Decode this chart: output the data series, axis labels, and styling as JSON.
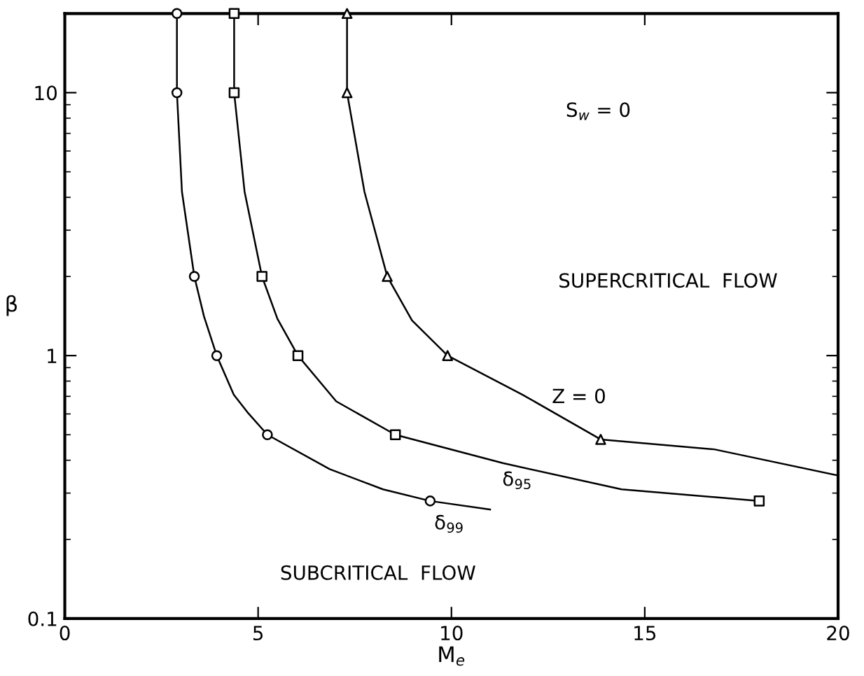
{
  "chart_data": {
    "type": "line",
    "xlabel": "M$_{e}$",
    "ylabel": "β",
    "log": "y",
    "grid": false,
    "line_style": "solid",
    "xlim": [
      0,
      20
    ],
    "ylim": [
      0.1,
      20
    ],
    "xticks": [
      0,
      5,
      10,
      15,
      20
    ],
    "yticks": [
      0.1,
      1,
      10
    ],
    "series": [
      {
        "color": "#000000",
        "marker": "none",
        "x": [
          2.9,
          2.9,
          3.03,
          3.35,
          3.6,
          3.93,
          4.37,
          4.72,
          5.24,
          6.85,
          8.23,
          9.45,
          11.0
        ],
        "values": [
          20,
          10,
          4.2,
          2,
          1.41,
          1,
          0.71,
          0.61,
          0.5,
          0.37,
          0.31,
          0.28,
          0.26
        ]
      },
      {
        "color": "#000000",
        "type": "scatter",
        "marker": "circle",
        "x": [
          2.9,
          2.9,
          3.35,
          3.93,
          5.24,
          9.45
        ],
        "values": [
          20,
          10,
          2,
          1,
          0.5,
          0.28
        ]
      },
      {
        "color": "#000000",
        "marker": "none",
        "x": [
          4.38,
          4.38,
          4.65,
          5.1,
          5.5,
          6.03,
          7.02,
          8.55,
          11.33,
          14.4,
          17.96
        ],
        "values": [
          20,
          10,
          4.2,
          2,
          1.38,
          1,
          0.67,
          0.5,
          0.39,
          0.31,
          0.28
        ]
      },
      {
        "color": "#000000",
        "type": "scatter",
        "marker": "square",
        "x": [
          4.38,
          4.38,
          5.1,
          6.03,
          8.55,
          17.96
        ],
        "values": [
          20,
          10,
          2,
          1,
          0.5,
          0.28
        ]
      },
      {
        "color": "#000000",
        "marker": "none",
        "x": [
          7.3,
          7.3,
          7.75,
          8.34,
          8.98,
          9.9,
          11.84,
          13.86,
          16.8,
          20
        ],
        "values": [
          20,
          10,
          4.2,
          2,
          1.36,
          1,
          0.71,
          0.48,
          0.44,
          0.35
        ]
      },
      {
        "color": "#000000",
        "type": "scatter",
        "marker": "triangle",
        "x": [
          7.3,
          7.3,
          8.34,
          9.9,
          13.86
        ],
        "values": [
          20,
          10,
          2,
          1,
          0.48
        ]
      }
    ],
    "annotations": [
      "S$_{w}$ = 0",
      "SUPERCRITICAL  FLOW",
      "SUBCRITICAL  FLOW",
      "Z = 0",
      "δ$_{95}$",
      "δ$_{99}$"
    ]
  }
}
